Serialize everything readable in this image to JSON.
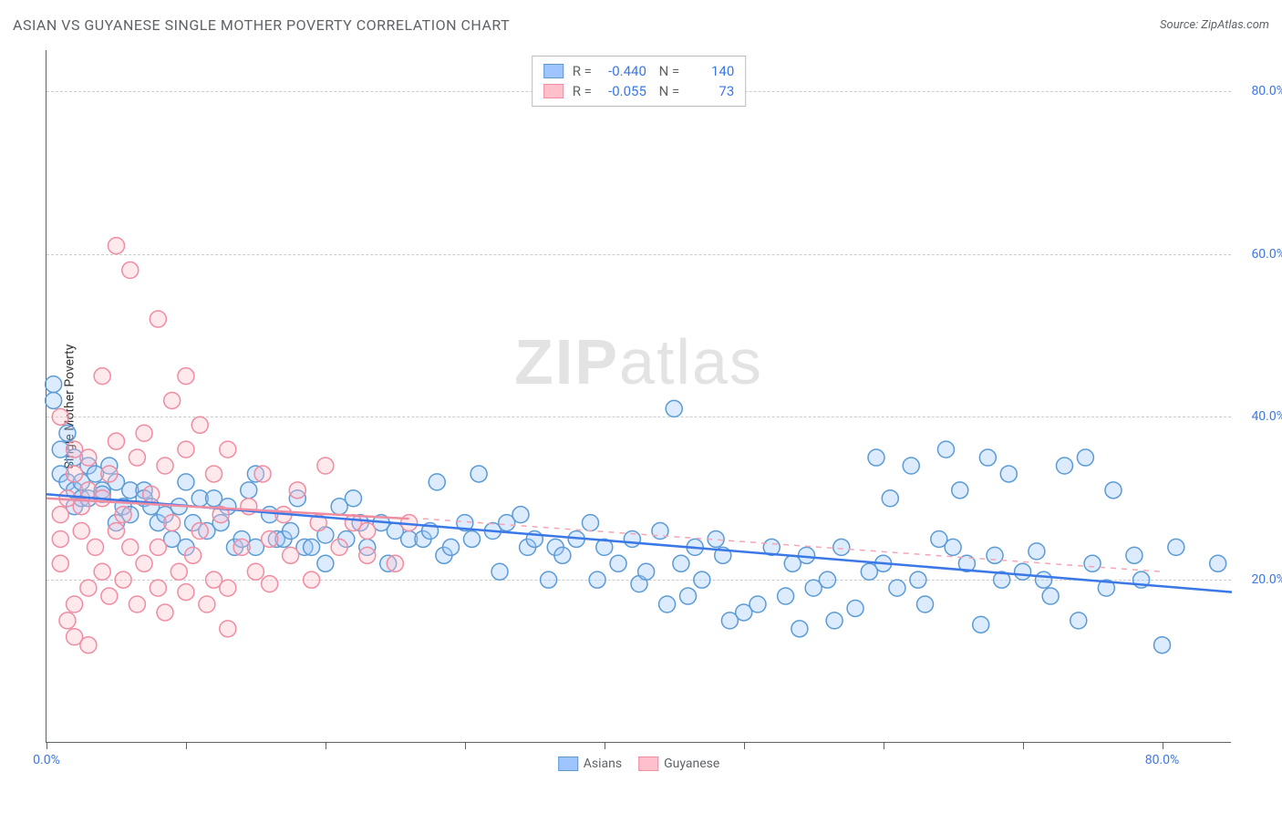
{
  "title": "ASIAN VS GUYANESE SINGLE MOTHER POVERTY CORRELATION CHART",
  "source_label": "Source: ZipAtlas.com",
  "y_axis_label": "Single Mother Poverty",
  "watermark": {
    "bold": "ZIP",
    "light": "atlas"
  },
  "chart": {
    "type": "scatter",
    "xlim": [
      0,
      85
    ],
    "ylim": [
      0,
      85
    ],
    "x_ticks": [
      0,
      10,
      20,
      30,
      40,
      50,
      60,
      70,
      80
    ],
    "x_tick_labels": {
      "0": "0.0%",
      "80": "80.0%"
    },
    "y_ticks": [
      20,
      40,
      60,
      80
    ],
    "y_tick_labels": {
      "20": "20.0%",
      "40": "40.0%",
      "60": "60.0%",
      "80": "80.0%"
    },
    "grid_color": "#cccccc",
    "axis_color": "#5f6368",
    "background_color": "#ffffff",
    "marker_radius": 9,
    "marker_stroke_width": 1.5,
    "marker_fill_opacity": 0.35,
    "trend_line_width": 2.5
  },
  "series": [
    {
      "name": "Asians",
      "color_fill": "#9ec5ff",
      "color_stroke": "#5b9bd5",
      "trend_color": "#3b78e7",
      "trend_dashed_color": "#f4a6b4",
      "R": "-0.440",
      "N": "140",
      "trend": {
        "x1": 0,
        "y1": 30.5,
        "x2": 85,
        "y2": 18.5
      },
      "trend2_dash": {
        "x1": 27,
        "y1": 27.5,
        "x2": 80,
        "y2": 21
      },
      "points": [
        [
          0.5,
          44
        ],
        [
          0.5,
          42
        ],
        [
          1,
          36
        ],
        [
          1.5,
          38
        ],
        [
          2,
          35
        ],
        [
          1,
          33
        ],
        [
          1.5,
          32
        ],
        [
          2,
          31
        ],
        [
          2.5,
          32
        ],
        [
          2,
          29
        ],
        [
          2.5,
          30
        ],
        [
          3,
          34
        ],
        [
          3,
          30
        ],
        [
          3.5,
          33
        ],
        [
          4,
          31
        ],
        [
          4,
          30.5
        ],
        [
          4.5,
          34
        ],
        [
          5,
          32
        ],
        [
          5,
          27
        ],
        [
          5.5,
          29
        ],
        [
          6,
          31
        ],
        [
          6,
          28
        ],
        [
          7,
          31
        ],
        [
          7,
          30
        ],
        [
          7.5,
          29
        ],
        [
          8,
          27
        ],
        [
          8.5,
          28
        ],
        [
          9,
          25
        ],
        [
          9.5,
          29
        ],
        [
          10,
          32
        ],
        [
          10,
          24
        ],
        [
          10.5,
          27
        ],
        [
          11,
          30
        ],
        [
          11.5,
          26
        ],
        [
          12,
          30
        ],
        [
          12.5,
          27
        ],
        [
          13,
          29
        ],
        [
          13.5,
          24
        ],
        [
          14,
          25
        ],
        [
          14.5,
          31
        ],
        [
          15,
          33
        ],
        [
          15,
          24
        ],
        [
          16,
          28
        ],
        [
          16.5,
          25
        ],
        [
          17,
          25
        ],
        [
          17.5,
          26
        ],
        [
          18,
          30
        ],
        [
          18.5,
          24
        ],
        [
          19,
          24
        ],
        [
          20,
          22
        ],
        [
          20,
          25.5
        ],
        [
          21,
          29
        ],
        [
          21.5,
          25
        ],
        [
          22,
          30
        ],
        [
          22.5,
          27
        ],
        [
          23,
          24
        ],
        [
          24,
          27
        ],
        [
          24.5,
          22
        ],
        [
          25,
          26
        ],
        [
          26,
          25
        ],
        [
          27,
          25
        ],
        [
          27.5,
          26
        ],
        [
          28,
          32
        ],
        [
          28.5,
          23
        ],
        [
          29,
          24
        ],
        [
          30,
          27
        ],
        [
          30.5,
          25
        ],
        [
          31,
          33
        ],
        [
          32,
          26
        ],
        [
          32.5,
          21
        ],
        [
          33,
          27
        ],
        [
          34,
          28
        ],
        [
          34.5,
          24
        ],
        [
          35,
          25
        ],
        [
          36,
          20
        ],
        [
          36.5,
          24
        ],
        [
          37,
          23
        ],
        [
          38,
          25
        ],
        [
          39,
          27
        ],
        [
          39.5,
          20
        ],
        [
          40,
          24
        ],
        [
          41,
          22
        ],
        [
          42,
          25
        ],
        [
          42.5,
          19.5
        ],
        [
          43,
          21
        ],
        [
          44,
          26
        ],
        [
          44.5,
          17
        ],
        [
          45,
          41
        ],
        [
          45.5,
          22
        ],
        [
          46,
          18
        ],
        [
          46.5,
          24
        ],
        [
          47,
          20
        ],
        [
          48,
          25
        ],
        [
          48.5,
          23
        ],
        [
          49,
          15
        ],
        [
          50,
          16
        ],
        [
          51,
          17
        ],
        [
          52,
          24
        ],
        [
          53,
          18
        ],
        [
          53.5,
          22
        ],
        [
          54,
          14
        ],
        [
          54.5,
          23
        ],
        [
          55,
          19
        ],
        [
          56,
          20
        ],
        [
          56.5,
          15
        ],
        [
          57,
          24
        ],
        [
          58,
          16.5
        ],
        [
          59,
          21
        ],
        [
          59.5,
          35
        ],
        [
          60,
          22
        ],
        [
          60.5,
          30
        ],
        [
          61,
          19
        ],
        [
          62,
          34
        ],
        [
          62.5,
          20
        ],
        [
          63,
          17
        ],
        [
          64,
          25
        ],
        [
          64.5,
          36
        ],
        [
          65,
          24
        ],
        [
          65.5,
          31
        ],
        [
          66,
          22
        ],
        [
          67,
          14.5
        ],
        [
          67.5,
          35
        ],
        [
          68,
          23
        ],
        [
          68.5,
          20
        ],
        [
          69,
          33
        ],
        [
          70,
          21
        ],
        [
          71,
          23.5
        ],
        [
          71.5,
          20
        ],
        [
          72,
          18
        ],
        [
          73,
          34
        ],
        [
          74,
          15
        ],
        [
          74.5,
          35
        ],
        [
          75,
          22
        ],
        [
          76,
          19
        ],
        [
          76.5,
          31
        ],
        [
          78,
          23
        ],
        [
          78.5,
          20
        ],
        [
          80,
          12
        ],
        [
          81,
          24
        ],
        [
          84,
          22
        ]
      ]
    },
    {
      "name": "Guyanese",
      "color_fill": "#ffc0cb",
      "color_stroke": "#f08ca0",
      "trend_color": "#f08ca0",
      "R": "-0.055",
      "N": "73",
      "trend": {
        "x1": 0,
        "y1": 30,
        "x2": 26,
        "y2": 27.5
      },
      "points": [
        [
          1,
          28
        ],
        [
          1,
          25
        ],
        [
          1.5,
          30
        ],
        [
          1,
          22
        ],
        [
          2,
          33
        ],
        [
          2,
          17
        ],
        [
          1.5,
          15
        ],
        [
          2,
          36
        ],
        [
          2.5,
          29
        ],
        [
          2,
          13
        ],
        [
          2.5,
          26
        ],
        [
          3,
          31
        ],
        [
          3,
          35
        ],
        [
          1,
          40
        ],
        [
          3,
          19
        ],
        [
          3.5,
          24
        ],
        [
          3,
          12
        ],
        [
          4,
          30
        ],
        [
          4,
          45
        ],
        [
          4,
          21
        ],
        [
          4.5,
          33
        ],
        [
          4.5,
          18
        ],
        [
          5,
          37
        ],
        [
          5,
          26
        ],
        [
          5,
          61
        ],
        [
          5.5,
          28
        ],
        [
          5.5,
          20
        ],
        [
          6,
          58
        ],
        [
          6,
          24
        ],
        [
          6.5,
          35
        ],
        [
          6.5,
          17
        ],
        [
          7,
          38
        ],
        [
          7,
          22
        ],
        [
          7.5,
          30.5
        ],
        [
          8,
          52
        ],
        [
          8,
          24
        ],
        [
          8,
          19
        ],
        [
          8.5,
          34
        ],
        [
          8.5,
          16
        ],
        [
          9,
          27
        ],
        [
          9,
          42
        ],
        [
          9.5,
          21
        ],
        [
          10,
          36
        ],
        [
          10,
          45
        ],
        [
          10,
          18.5
        ],
        [
          10.5,
          23
        ],
        [
          11,
          39
        ],
        [
          11,
          26
        ],
        [
          11.5,
          17
        ],
        [
          12,
          33
        ],
        [
          12,
          20
        ],
        [
          12.5,
          28
        ],
        [
          13,
          36
        ],
        [
          13,
          19
        ],
        [
          13,
          14
        ],
        [
          14,
          24
        ],
        [
          14.5,
          29
        ],
        [
          15,
          21
        ],
        [
          15.5,
          33
        ],
        [
          16,
          25
        ],
        [
          16,
          19.5
        ],
        [
          17,
          28
        ],
        [
          17.5,
          23
        ],
        [
          18,
          31
        ],
        [
          19,
          20
        ],
        [
          19.5,
          27
        ],
        [
          20,
          34
        ],
        [
          21,
          24
        ],
        [
          22,
          27
        ],
        [
          23,
          23
        ],
        [
          23,
          26
        ],
        [
          25,
          22
        ],
        [
          26,
          27
        ]
      ]
    }
  ],
  "legend": {
    "items": [
      {
        "label": "Asians",
        "fill": "#9ec5ff",
        "stroke": "#5b9bd5"
      },
      {
        "label": "Guyanese",
        "fill": "#ffc0cb",
        "stroke": "#f08ca0"
      }
    ]
  }
}
